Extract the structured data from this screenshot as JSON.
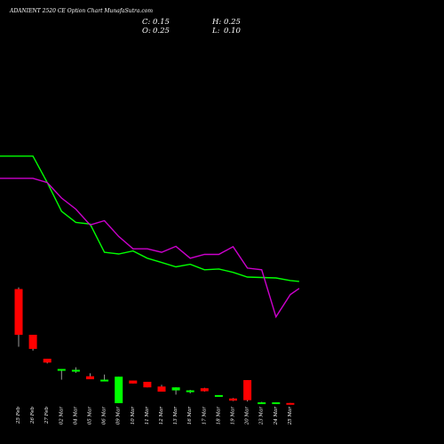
{
  "chart_data": {
    "type": "candlestick",
    "title": "ADANIENT 2520  CE Option  Chart MunafaSutra.com",
    "ohlc_readout": {
      "close_label": "C:",
      "close_value": "0.15",
      "high_label": "H:",
      "high_value": "0.25",
      "open_label": "O:",
      "open_value": "0.25",
      "low_label": "L:",
      "low_value": "0.10"
    },
    "categories": [
      "25 Feb",
      "26 Feb",
      "27 Feb",
      "02 Mar",
      "04 Mar",
      "05 Mar",
      "06 Mar",
      "09 Mar",
      "10 Mar",
      "11 Mar",
      "12 Mar",
      "13 Mar",
      "16 Mar",
      "17 Mar",
      "18 Mar",
      "19 Mar",
      "20 Mar",
      "23 Mar",
      "24 Mar",
      "25 Mar"
    ],
    "candles": [
      {
        "open": 26.9,
        "high": 27.3,
        "low": 13.4,
        "close": 16.2
      },
      {
        "open": 16.2,
        "high": 16.2,
        "low": 12.5,
        "close": 12.9
      },
      {
        "open": 10.6,
        "high": 10.6,
        "low": 9.5,
        "close": 9.7
      },
      {
        "open": 7.9,
        "high": 8.2,
        "low": 5.7,
        "close": 8.2
      },
      {
        "open": 7.9,
        "high": 8.6,
        "low": 7.3,
        "close": 8.0
      },
      {
        "open": 6.5,
        "high": 7.2,
        "low": 5.9,
        "close": 5.8
      },
      {
        "open": 5.5,
        "high": 6.9,
        "low": 5.3,
        "close": 5.7
      },
      {
        "open": 0.2,
        "high": 6.4,
        "low": 0.2,
        "close": 6.4
      },
      {
        "open": 5.5,
        "high": 5.5,
        "low": 4.8,
        "close": 4.8
      },
      {
        "open": 5.2,
        "high": 5.2,
        "low": 3.9,
        "close": 3.9
      },
      {
        "open": 4.1,
        "high": 4.5,
        "low": 3.0,
        "close": 2.9
      },
      {
        "open": 3.2,
        "high": 3.9,
        "low": 2.2,
        "close": 3.9
      },
      {
        "open": 2.8,
        "high": 3.3,
        "low": 2.5,
        "close": 3.2
      },
      {
        "open": 3.7,
        "high": 3.8,
        "low": 2.9,
        "close": 3.0
      },
      {
        "open": 2.0,
        "high": 2.0,
        "low": 1.8,
        "close": 2.1
      },
      {
        "open": 1.3,
        "high": 1.4,
        "low": 0.7,
        "close": 0.8
      },
      {
        "open": 5.6,
        "high": 5.6,
        "low": 0.6,
        "close": 0.9
      },
      {
        "open": 0.3,
        "high": 0.5,
        "low": 0.1,
        "close": 0.4
      },
      {
        "open": 0.3,
        "high": 0.3,
        "low": 0.3,
        "close": 0.4
      },
      {
        "open": 0.25,
        "high": 0.25,
        "low": 0.1,
        "close": 0.15
      }
    ],
    "series": [
      {
        "color": "#00ff00",
        "values": [
          58.0,
          58.0,
          51.8,
          45.1,
          42.5,
          42.1,
          35.5,
          35.1,
          35.8,
          34.1,
          33.1,
          32.1,
          32.7,
          31.4,
          31.6,
          30.8,
          29.7,
          29.6,
          29.5,
          28.9
        ]
      },
      {
        "color": "#cc00cc",
        "values": [
          52.8,
          52.8,
          51.8,
          48.2,
          45.6,
          41.9,
          42.9,
          39.2,
          36.3,
          36.3,
          35.5,
          36.9,
          34.1,
          35.0,
          35.0,
          36.8,
          31.8,
          31.4,
          20.4,
          25.6
        ]
      }
    ],
    "ylim": [
      0,
      70
    ],
    "grid": false,
    "legend": "none",
    "colors": {
      "up": "#00ff00",
      "down": "#ff0000",
      "wick": "#999999",
      "background": "#000000"
    }
  }
}
